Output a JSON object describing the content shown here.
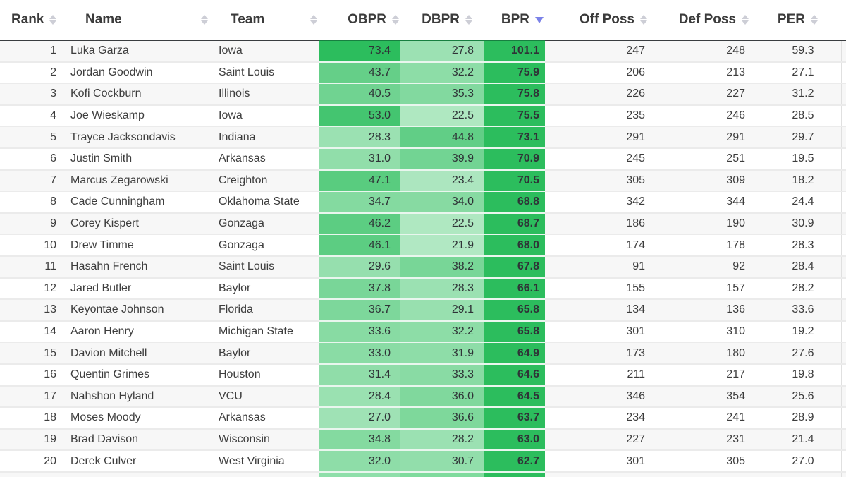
{
  "table": {
    "columns": [
      {
        "key": "rank",
        "label": "Rank",
        "sort": "none",
        "heat": false
      },
      {
        "key": "name",
        "label": "Name",
        "sort": "none",
        "heat": false
      },
      {
        "key": "team",
        "label": "Team",
        "sort": "none",
        "heat": false
      },
      {
        "key": "obpr",
        "label": "OBPR",
        "sort": "none",
        "heat": true
      },
      {
        "key": "dbpr",
        "label": "DBPR",
        "sort": "none",
        "heat": true
      },
      {
        "key": "bpr",
        "label": "BPR",
        "sort": "desc",
        "heat": true
      },
      {
        "key": "off_poss",
        "label": "Off Poss",
        "sort": "none",
        "heat": false
      },
      {
        "key": "def_poss",
        "label": "Def Poss",
        "sort": "none",
        "heat": false
      },
      {
        "key": "per",
        "label": "PER",
        "sort": "none",
        "heat": false
      }
    ],
    "rows": [
      {
        "rank": "1",
        "name": "Luka Garza",
        "team": "Iowa",
        "obpr": "73.4",
        "dbpr": "27.8",
        "bpr": "101.1",
        "off_poss": "247",
        "def_poss": "248",
        "per": "59.3"
      },
      {
        "rank": "2",
        "name": "Jordan Goodwin",
        "team": "Saint Louis",
        "obpr": "43.7",
        "dbpr": "32.2",
        "bpr": "75.9",
        "off_poss": "206",
        "def_poss": "213",
        "per": "27.1"
      },
      {
        "rank": "3",
        "name": "Kofi Cockburn",
        "team": "Illinois",
        "obpr": "40.5",
        "dbpr": "35.3",
        "bpr": "75.8",
        "off_poss": "226",
        "def_poss": "227",
        "per": "31.2"
      },
      {
        "rank": "4",
        "name": "Joe Wieskamp",
        "team": "Iowa",
        "obpr": "53.0",
        "dbpr": "22.5",
        "bpr": "75.5",
        "off_poss": "235",
        "def_poss": "246",
        "per": "28.5"
      },
      {
        "rank": "5",
        "name": "Trayce Jacksondavis",
        "team": "Indiana",
        "obpr": "28.3",
        "dbpr": "44.8",
        "bpr": "73.1",
        "off_poss": "291",
        "def_poss": "291",
        "per": "29.7"
      },
      {
        "rank": "6",
        "name": "Justin Smith",
        "team": "Arkansas",
        "obpr": "31.0",
        "dbpr": "39.9",
        "bpr": "70.9",
        "off_poss": "245",
        "def_poss": "251",
        "per": "19.5"
      },
      {
        "rank": "7",
        "name": "Marcus Zegarowski",
        "team": "Creighton",
        "obpr": "47.1",
        "dbpr": "23.4",
        "bpr": "70.5",
        "off_poss": "305",
        "def_poss": "309",
        "per": "18.2"
      },
      {
        "rank": "8",
        "name": "Cade Cunningham",
        "team": "Oklahoma State",
        "obpr": "34.7",
        "dbpr": "34.0",
        "bpr": "68.8",
        "off_poss": "342",
        "def_poss": "344",
        "per": "24.4"
      },
      {
        "rank": "9",
        "name": "Corey Kispert",
        "team": "Gonzaga",
        "obpr": "46.2",
        "dbpr": "22.5",
        "bpr": "68.7",
        "off_poss": "186",
        "def_poss": "190",
        "per": "30.9"
      },
      {
        "rank": "10",
        "name": "Drew Timme",
        "team": "Gonzaga",
        "obpr": "46.1",
        "dbpr": "21.9",
        "bpr": "68.0",
        "off_poss": "174",
        "def_poss": "178",
        "per": "28.3"
      },
      {
        "rank": "11",
        "name": "Hasahn French",
        "team": "Saint Louis",
        "obpr": "29.6",
        "dbpr": "38.2",
        "bpr": "67.8",
        "off_poss": "91",
        "def_poss": "92",
        "per": "28.4"
      },
      {
        "rank": "12",
        "name": "Jared Butler",
        "team": "Baylor",
        "obpr": "37.8",
        "dbpr": "28.3",
        "bpr": "66.1",
        "off_poss": "155",
        "def_poss": "157",
        "per": "28.2"
      },
      {
        "rank": "13",
        "name": "Keyontae Johnson",
        "team": "Florida",
        "obpr": "36.7",
        "dbpr": "29.1",
        "bpr": "65.8",
        "off_poss": "134",
        "def_poss": "136",
        "per": "33.6"
      },
      {
        "rank": "14",
        "name": "Aaron Henry",
        "team": "Michigan State",
        "obpr": "33.6",
        "dbpr": "32.2",
        "bpr": "65.8",
        "off_poss": "301",
        "def_poss": "310",
        "per": "19.2"
      },
      {
        "rank": "15",
        "name": "Davion Mitchell",
        "team": "Baylor",
        "obpr": "33.0",
        "dbpr": "31.9",
        "bpr": "64.9",
        "off_poss": "173",
        "def_poss": "180",
        "per": "27.6"
      },
      {
        "rank": "16",
        "name": "Quentin Grimes",
        "team": "Houston",
        "obpr": "31.4",
        "dbpr": "33.3",
        "bpr": "64.6",
        "off_poss": "211",
        "def_poss": "217",
        "per": "19.8"
      },
      {
        "rank": "17",
        "name": "Nahshon Hyland",
        "team": "VCU",
        "obpr": "28.4",
        "dbpr": "36.0",
        "bpr": "64.5",
        "off_poss": "346",
        "def_poss": "354",
        "per": "25.6"
      },
      {
        "rank": "18",
        "name": "Moses Moody",
        "team": "Arkansas",
        "obpr": "27.0",
        "dbpr": "36.6",
        "bpr": "63.7",
        "off_poss": "234",
        "def_poss": "241",
        "per": "28.9"
      },
      {
        "rank": "19",
        "name": "Brad Davison",
        "team": "Wisconsin",
        "obpr": "34.8",
        "dbpr": "28.2",
        "bpr": "63.0",
        "off_poss": "227",
        "def_poss": "231",
        "per": "21.4"
      },
      {
        "rank": "20",
        "name": "Derek Culver",
        "team": "West Virginia",
        "obpr": "32.0",
        "dbpr": "30.7",
        "bpr": "62.7",
        "off_poss": "301",
        "def_poss": "305",
        "per": "27.0"
      }
    ],
    "partial_row_colors": {
      "obpr": "#8fdfaa",
      "dbpr": "#7fdb9d",
      "bpr": "#2cbd5d"
    },
    "heatmap": {
      "min_value": 15,
      "max_value": 60,
      "min_color": "#c9f0d5",
      "max_color": "#2cbd5d"
    },
    "sort_icon_inactive_color": "#cdced6",
    "sort_icon_active_color": "#7b82e8"
  }
}
